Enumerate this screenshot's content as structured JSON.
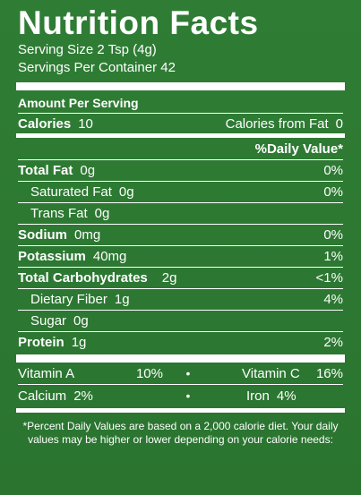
{
  "title": "Nutrition Facts",
  "serving_size": "Serving Size 2 Tsp (4g)",
  "servings_per_container": "Servings Per Container 42",
  "amount_per_serving": "Amount Per Serving",
  "calories": {
    "label": "Calories",
    "value": "10",
    "from_fat_label": "Calories from Fat",
    "from_fat_value": "0"
  },
  "daily_value_header": "%Daily Value*",
  "nutrients": [
    {
      "label": "Total Fat",
      "amount": "0g",
      "dv": "0%"
    },
    {
      "label": "Saturated Fat",
      "amount": "0g",
      "dv": "0%"
    },
    {
      "label": "Trans Fat",
      "amount": "0g",
      "dv": ""
    },
    {
      "label": "Sodium",
      "amount": "0mg",
      "dv": "0%"
    },
    {
      "label": "Potassium",
      "amount": "40mg",
      "dv": "1%"
    },
    {
      "label": "Total Carbohydrates",
      "amount": "2g",
      "dv": "<1%"
    },
    {
      "label": "Dietary Fiber",
      "amount": "1g",
      "dv": "4%"
    },
    {
      "label": "Sugar",
      "amount": "0g",
      "dv": ""
    },
    {
      "label": "Protein",
      "amount": "1g",
      "dv": "2%"
    }
  ],
  "vitamins": [
    {
      "left_label": "Vitamin A",
      "left_value": "10%",
      "right_label": "Vitamin C",
      "right_value": "16%"
    },
    {
      "left_label": "Calcium",
      "left_value": "2%",
      "right_label": "Iron",
      "right_value": "4%"
    }
  ],
  "bullet": "•",
  "footnote": "*Percent Daily Values are based on a 2,000 calorie diet. Your daily values may be higher or lower depending on your calorie needs:",
  "colors": {
    "background": "#2d7a32",
    "text": "#ffffff"
  }
}
